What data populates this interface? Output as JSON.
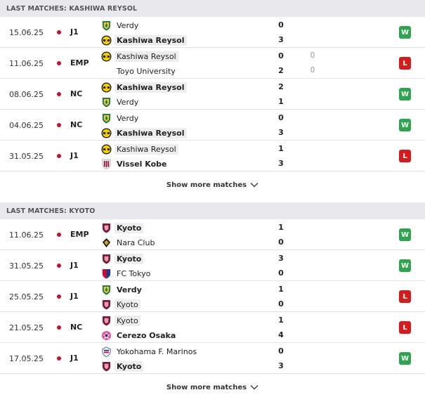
{
  "sections": [
    {
      "title": "LAST MATCHES: KASHIWA REYSOL",
      "show_more": "Show more matches",
      "matches": [
        {
          "date": "15.06.25",
          "comp": "J1",
          "home": {
            "name": "Verdy",
            "logo": "verdy-logo",
            "bold": false,
            "hl": false
          },
          "away": {
            "name": "Kashiwa Reysol",
            "logo": "kashiwa-logo",
            "bold": true,
            "hl": true
          },
          "home_score": "0",
          "away_score": "3",
          "result": "W"
        },
        {
          "date": "11.06.25",
          "comp": "EMP",
          "home": {
            "name": "Kashiwa Reysol",
            "logo": "kashiwa-logo",
            "bold": false,
            "hl": true
          },
          "away": {
            "name": "Toyo University",
            "logo": "none",
            "bold": false,
            "hl": false
          },
          "home_score": "0",
          "away_score": "2",
          "home_pen": "0",
          "away_pen": "0",
          "result": "L"
        },
        {
          "date": "08.06.25",
          "comp": "NC",
          "home": {
            "name": "Kashiwa Reysol",
            "logo": "kashiwa-logo",
            "bold": true,
            "hl": true
          },
          "away": {
            "name": "Verdy",
            "logo": "verdy-logo",
            "bold": false,
            "hl": false
          },
          "home_score": "2",
          "away_score": "1",
          "result": "W"
        },
        {
          "date": "04.06.25",
          "comp": "NC",
          "home": {
            "name": "Verdy",
            "logo": "verdy-logo",
            "bold": false,
            "hl": false
          },
          "away": {
            "name": "Kashiwa Reysol",
            "logo": "kashiwa-logo",
            "bold": true,
            "hl": true
          },
          "home_score": "0",
          "away_score": "3",
          "result": "W"
        },
        {
          "date": "31.05.25",
          "comp": "J1",
          "home": {
            "name": "Kashiwa Reysol",
            "logo": "kashiwa-logo",
            "bold": false,
            "hl": true
          },
          "away": {
            "name": "Vissel Kobe",
            "logo": "kobe-logo",
            "bold": true,
            "hl": false
          },
          "home_score": "1",
          "away_score": "3",
          "result": "L"
        }
      ]
    },
    {
      "title": "LAST MATCHES: KYOTO",
      "show_more": "Show more matches",
      "matches": [
        {
          "date": "11.06.25",
          "comp": "EMP",
          "home": {
            "name": "Kyoto",
            "logo": "kyoto-logo",
            "bold": true,
            "hl": true
          },
          "away": {
            "name": "Nara Club",
            "logo": "nara-logo",
            "bold": false,
            "hl": false
          },
          "home_score": "1",
          "away_score": "0",
          "result": "W"
        },
        {
          "date": "31.05.25",
          "comp": "J1",
          "home": {
            "name": "Kyoto",
            "logo": "kyoto-logo",
            "bold": true,
            "hl": true
          },
          "away": {
            "name": "FC Tokyo",
            "logo": "fctokyo-logo",
            "bold": false,
            "hl": false
          },
          "home_score": "3",
          "away_score": "0",
          "result": "W"
        },
        {
          "date": "25.05.25",
          "comp": "J1",
          "home": {
            "name": "Verdy",
            "logo": "verdy-logo",
            "bold": true,
            "hl": false
          },
          "away": {
            "name": "Kyoto",
            "logo": "kyoto-logo",
            "bold": false,
            "hl": true
          },
          "home_score": "1",
          "away_score": "0",
          "result": "L"
        },
        {
          "date": "21.05.25",
          "comp": "NC",
          "home": {
            "name": "Kyoto",
            "logo": "kyoto-logo",
            "bold": false,
            "hl": true
          },
          "away": {
            "name": "Cerezo Osaka",
            "logo": "cerezo-logo",
            "bold": true,
            "hl": false
          },
          "home_score": "1",
          "away_score": "4",
          "result": "L"
        },
        {
          "date": "17.05.25",
          "comp": "J1",
          "home": {
            "name": "Yokohama F. Marinos",
            "logo": "marinos-logo",
            "bold": false,
            "hl": false
          },
          "away": {
            "name": "Kyoto",
            "logo": "kyoto-logo",
            "bold": true,
            "hl": true
          },
          "home_score": "0",
          "away_score": "3",
          "result": "W"
        }
      ]
    }
  ],
  "colors": {
    "win": "#2ea44f",
    "loss": "#d51c1c",
    "dot": "#c8102e"
  }
}
